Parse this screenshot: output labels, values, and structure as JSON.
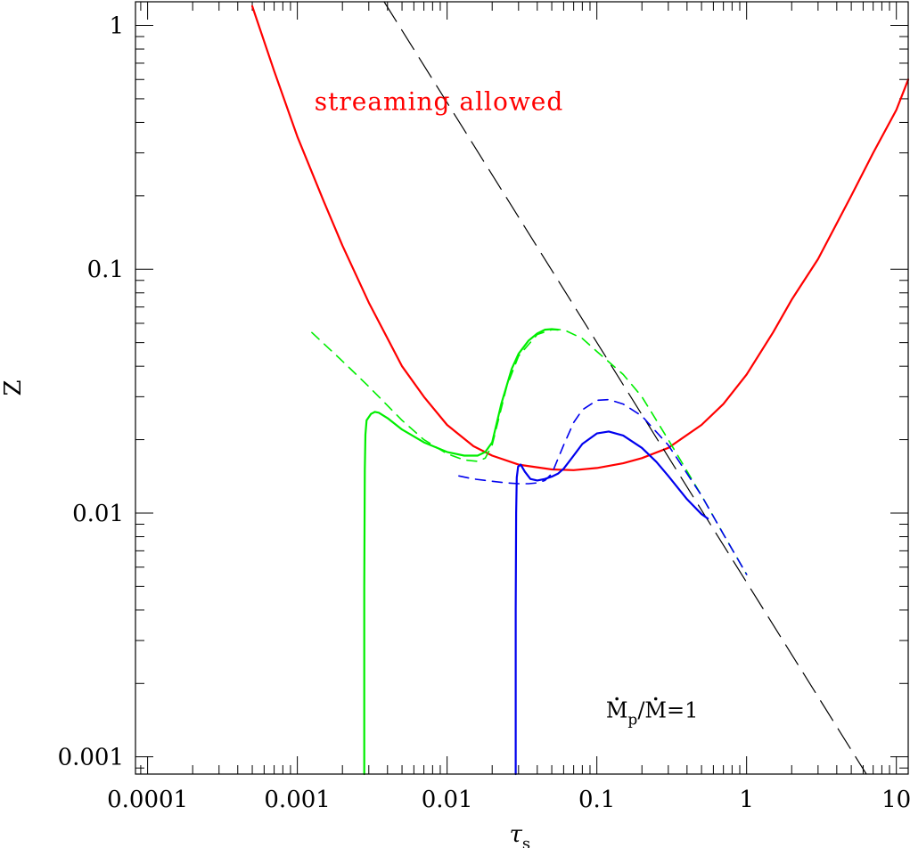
{
  "chart_data": {
    "type": "line",
    "x_scale": "log",
    "y_scale": "log",
    "xlim": [
      8.3e-05,
      12
    ],
    "ylim": [
      0.00085,
      1.25
    ],
    "xlabel_symbol": "τ",
    "xlabel_sub": "s",
    "ylabel": "Z",
    "x_ticks": [
      0.0001,
      0.001,
      0.01,
      0.1,
      1,
      10
    ],
    "x_tick_labels": [
      "0.0001",
      "0.001",
      "0.01",
      "0.1",
      "1",
      "10"
    ],
    "y_ticks": [
      0.001,
      0.01,
      0.1,
      1
    ],
    "y_tick_labels": [
      "0.001",
      "0.01",
      "0.1",
      "1"
    ],
    "annotations": {
      "region": {
        "text": "streaming allowed",
        "color": "#ff0000",
        "x": 0.0013,
        "y": 0.45
      },
      "ratio": {
        "M": "M",
        "p": "p",
        "slash": "/",
        "M2": "M",
        "eq": "=1",
        "x": 0.115,
        "y": 0.00145
      }
    },
    "series": [
      {
        "name": "streaming threshold",
        "color": "#ff0000",
        "style": "solid",
        "width": 2.2,
        "x": [
          0.0005,
          0.0007,
          0.001,
          0.0015,
          0.002,
          0.003,
          0.005,
          0.007,
          0.01,
          0.015,
          0.02,
          0.03,
          0.05,
          0.07,
          0.1,
          0.15,
          0.2,
          0.3,
          0.5,
          0.7,
          1,
          1.5,
          2,
          3,
          5,
          7,
          10,
          12
        ],
        "y": [
          1.2,
          0.65,
          0.35,
          0.19,
          0.125,
          0.073,
          0.04,
          0.03,
          0.023,
          0.0188,
          0.0172,
          0.0158,
          0.0151,
          0.015,
          0.0153,
          0.016,
          0.0168,
          0.0185,
          0.023,
          0.028,
          0.037,
          0.055,
          0.075,
          0.11,
          0.2,
          0.3,
          0.45,
          0.6
        ]
      },
      {
        "name": "asymptote",
        "color": "#000000",
        "style": "longdash",
        "width": 1.2,
        "x": [
          0.0038,
          6.3
        ],
        "y": [
          1.25,
          0.00085
        ]
      },
      {
        "name": "green dashed",
        "color": "#00ee00",
        "style": "dash",
        "width": 1.6,
        "x": [
          0.00125,
          0.002,
          0.003,
          0.005,
          0.007,
          0.01,
          0.013,
          0.016,
          0.018,
          0.02,
          0.025,
          0.03,
          0.04,
          0.05,
          0.06,
          0.08,
          0.1,
          0.15,
          0.2,
          0.3,
          0.5,
          0.7,
          1
        ],
        "y": [
          0.055,
          0.042,
          0.033,
          0.024,
          0.02,
          0.0175,
          0.0165,
          0.0163,
          0.0168,
          0.019,
          0.033,
          0.044,
          0.054,
          0.0565,
          0.0565,
          0.052,
          0.046,
          0.037,
          0.03,
          0.02,
          0.0118,
          0.0082,
          0.0056
        ]
      },
      {
        "name": "green solid",
        "color": "#00ee00",
        "style": "solid",
        "width": 2.2,
        "x": [
          0.0028,
          0.0028,
          0.00282,
          0.00285,
          0.0029,
          0.0031,
          0.0033,
          0.0035,
          0.004,
          0.005,
          0.007,
          0.01,
          0.013,
          0.016,
          0.018,
          0.02,
          0.023,
          0.027,
          0.03,
          0.035,
          0.04,
          0.045,
          0.05,
          0.055
        ],
        "y": [
          0.00085,
          0.005,
          0.015,
          0.021,
          0.024,
          0.0255,
          0.026,
          0.0258,
          0.0245,
          0.022,
          0.0195,
          0.0178,
          0.0172,
          0.0172,
          0.0178,
          0.0195,
          0.028,
          0.039,
          0.045,
          0.051,
          0.0545,
          0.0565,
          0.0568,
          0.0565
        ]
      },
      {
        "name": "blue dashed",
        "color": "#0000ee",
        "style": "dash",
        "width": 1.6,
        "x": [
          0.012,
          0.015,
          0.02,
          0.025,
          0.03,
          0.035,
          0.04,
          0.045,
          0.05,
          0.06,
          0.07,
          0.08,
          0.1,
          0.12,
          0.15,
          0.2,
          0.3,
          0.5,
          0.7,
          1
        ],
        "y": [
          0.0142,
          0.0138,
          0.0135,
          0.0133,
          0.0132,
          0.0132,
          0.0133,
          0.0136,
          0.0145,
          0.019,
          0.0235,
          0.0265,
          0.029,
          0.0292,
          0.028,
          0.025,
          0.019,
          0.0118,
          0.0082,
          0.0056
        ]
      },
      {
        "name": "blue solid",
        "color": "#0000ee",
        "style": "solid",
        "width": 2.2,
        "x": [
          0.0287,
          0.0287,
          0.0289,
          0.0292,
          0.0298,
          0.031,
          0.033,
          0.036,
          0.04,
          0.045,
          0.05,
          0.055,
          0.06,
          0.07,
          0.08,
          0.1,
          0.12,
          0.15,
          0.2,
          0.25,
          0.3,
          0.4,
          0.5,
          0.55
        ],
        "y": [
          0.00085,
          0.004,
          0.01,
          0.014,
          0.0155,
          0.0158,
          0.0148,
          0.0138,
          0.0136,
          0.0138,
          0.0141,
          0.0145,
          0.0152,
          0.0172,
          0.0192,
          0.0212,
          0.0216,
          0.0208,
          0.0185,
          0.0162,
          0.0142,
          0.0114,
          0.0099,
          0.0095
        ]
      }
    ]
  }
}
